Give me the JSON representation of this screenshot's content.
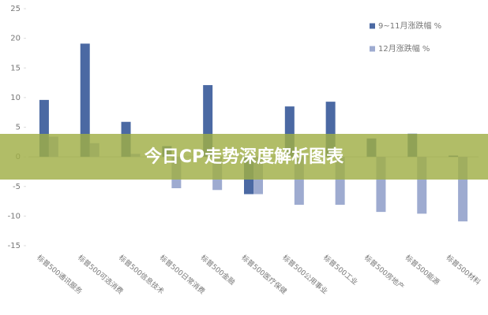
{
  "chart_data": {
    "type": "bar",
    "categories": [
      "标普500通讯服务",
      "标普500可选消费",
      "标普500信息技术",
      "标普500日常消费",
      "标普500金融",
      "标普500医疗保健",
      "标普500公用事业",
      "标普500工业",
      "标普500房地产",
      "标普500能源",
      "标普500材料"
    ],
    "series": [
      {
        "name": "9~11月涨跌幅 %",
        "color": "#4b69a3",
        "values": [
          9.6,
          19.1,
          5.9,
          1.8,
          12.1,
          -6.3,
          8.5,
          9.3,
          3.1,
          3.9,
          0.2
        ]
      },
      {
        "name": "12月涨跌幅 %",
        "color": "#9eabd0",
        "values": [
          3.4,
          2.3,
          0.5,
          -5.3,
          -5.6,
          -6.3,
          -8.1,
          -8.1,
          -9.3,
          -9.6,
          -10.9
        ]
      }
    ],
    "ylim": [
      -15,
      25
    ],
    "yticks": [
      -15,
      -10,
      -5,
      0,
      5,
      10,
      15,
      20,
      25
    ],
    "legend": "top-right"
  },
  "banner": "今日CP走势深度解析图表"
}
